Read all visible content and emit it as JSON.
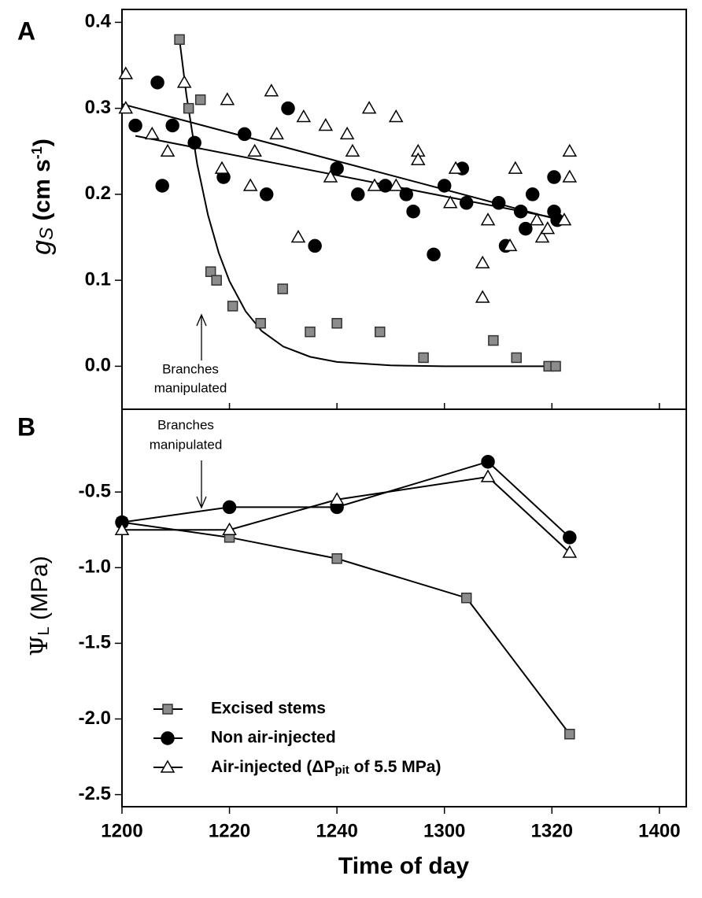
{
  "chart_data": [
    {
      "type": "scatter",
      "panel": "A",
      "ylabel": [
        "g",
        "S",
        " (cm s",
        "-1",
        ")"
      ],
      "annotation": [
        "Branches",
        "manipulated"
      ],
      "xlim": [
        0,
        105
      ],
      "xticks": [
        0,
        20,
        40,
        60,
        80,
        100
      ],
      "ylim": [
        -0.05,
        0.415
      ],
      "yticks": [
        {
          "value": 0,
          "label": "0.0"
        },
        0.1,
        0.2,
        0.3,
        0.4
      ],
      "series": [
        {
          "marker": "square",
          "color": "#8c8c8c",
          "x": [
            10.7,
            12.4,
            14.6,
            16.5,
            17.6,
            20.6,
            25.8,
            29.9,
            35.0,
            40.0,
            48.0,
            56.1,
            69.1,
            73.4,
            79.4,
            80.7
          ],
          "values": [
            0.38,
            0.3,
            0.31,
            0.11,
            0.1,
            0.07,
            0.05,
            0.09,
            0.04,
            0.05,
            0.04,
            0.01,
            0.03,
            0.01,
            0,
            0
          ]
        },
        {
          "marker": "circle",
          "color": "#000000",
          "x": [
            2.5,
            6.6,
            7.5,
            9.4,
            13.5,
            18.9,
            22.8,
            26.9,
            30.9,
            35.9,
            40.0,
            43.9,
            49.0,
            52.9,
            54.2,
            58.0,
            60.0,
            63.3,
            64.1,
            70.1,
            71.4,
            74.2,
            75.1,
            76.4,
            80.4,
            80.4,
            81.0
          ],
          "values": [
            0.28,
            0.33,
            0.21,
            0.28,
            0.26,
            0.22,
            0.27,
            0.2,
            0.3,
            0.14,
            0.23,
            0.2,
            0.21,
            0.2,
            0.18,
            0.13,
            0.21,
            0.23,
            0.19,
            0.19,
            0.14,
            0.18,
            0.16,
            0.2,
            0.22,
            0.18,
            0.17
          ]
        },
        {
          "marker": "triangle",
          "color": "#ffffff",
          "x": [
            0.7,
            0.7,
            5.6,
            8.5,
            11.6,
            18.6,
            19.6,
            23.9,
            24.7,
            27.8,
            28.8,
            32.8,
            33.8,
            37.9,
            38.8,
            41.9,
            42.9,
            46.0,
            47.0,
            51.0,
            51.0,
            55.1,
            55.1,
            61.1,
            62.1,
            68.1,
            67.1,
            67.1,
            72.2,
            73.2,
            77.2,
            78.2,
            79.2,
            82.3,
            83.3,
            83.3
          ],
          "values": [
            0.34,
            0.3,
            0.27,
            0.25,
            0.33,
            0.23,
            0.31,
            0.21,
            0.25,
            0.32,
            0.27,
            0.15,
            0.29,
            0.28,
            0.22,
            0.27,
            0.25,
            0.3,
            0.21,
            0.29,
            0.21,
            0.25,
            0.24,
            0.19,
            0.23,
            0.17,
            0.12,
            0.08,
            0.14,
            0.23,
            0.17,
            0.15,
            0.16,
            0.17,
            0.25,
            0.22
          ]
        }
      ],
      "fits": [
        {
          "x": [
            0,
            83.3
          ],
          "values": [
            0.305,
            0.167
          ]
        },
        {
          "x": [
            2.5,
            81
          ],
          "values": [
            0.268,
            0.172
          ]
        },
        {
          "x": [
            10.7,
            12,
            14,
            16,
            18,
            20,
            23,
            26,
            30,
            35,
            40,
            50,
            60,
            70,
            81
          ],
          "values": [
            0.38,
            0.315,
            0.235,
            0.176,
            0.132,
            0.099,
            0.064,
            0.041,
            0.023,
            0.011,
            0.005,
            0.001,
            0,
            0,
            0
          ]
        }
      ]
    },
    {
      "type": "line",
      "panel": "B",
      "ylabel": [
        "Ψ",
        "L",
        " (MPa)"
      ],
      "xlabel": "Time of day",
      "annotation": [
        "Branches",
        "manipulated"
      ],
      "legend": "lower left",
      "xlim": [
        0,
        105
      ],
      "xticks": [
        {
          "value": 0,
          "label": "1200"
        },
        {
          "value": 20,
          "label": "1220"
        },
        {
          "value": 40,
          "label": "1240"
        },
        {
          "value": 60,
          "label": "1300"
        },
        {
          "value": 80,
          "label": "1320"
        },
        {
          "value": 100,
          "label": "1400"
        }
      ],
      "ylim": [
        -2.58,
        0.047
      ],
      "yticks": [
        -0.5,
        {
          "value": -1,
          "label": "-1.0"
        },
        -1.5,
        {
          "value": -2,
          "label": "-2.0"
        },
        -2.5
      ],
      "series": [
        {
          "name": "Excised stems",
          "marker": "square",
          "color": "#8c8c8c",
          "x": [
            0,
            20,
            40,
            64.1,
            83.3
          ],
          "values": [
            -0.7,
            -0.8,
            -0.94,
            -1.2,
            -2.1
          ]
        },
        {
          "name": "Non air-injected",
          "marker": "circle",
          "color": "#000000",
          "x": [
            0,
            20,
            40,
            68.1,
            83.3
          ],
          "values": [
            -0.7,
            -0.6,
            -0.6,
            -0.3,
            -0.8
          ]
        },
        {
          "name": [
            "Air-injected (ΔP",
            "pit",
            " of 5.5 MPa)"
          ],
          "marker": "triangle",
          "color": "#ffffff",
          "x": [
            0,
            20,
            40,
            68.1,
            83.3
          ],
          "values": [
            -0.75,
            -0.75,
            -0.55,
            -0.4,
            -0.9
          ]
        }
      ]
    }
  ]
}
